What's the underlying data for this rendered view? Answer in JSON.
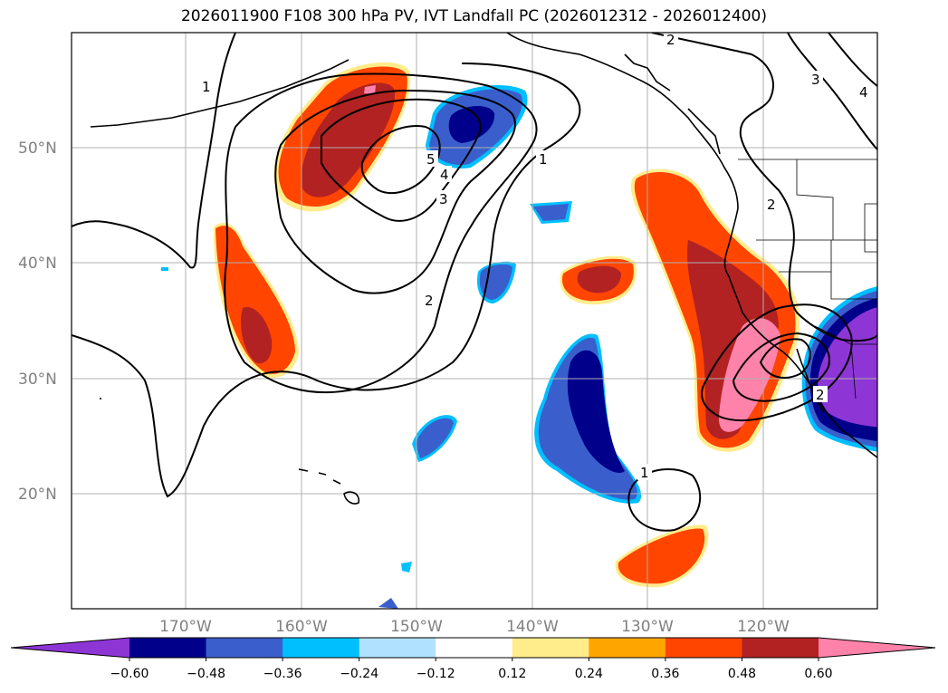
{
  "title": "2026011900 F108 300 hPa PV, IVT Landfall PC (2026012312 - 2026012400)",
  "lat_labels": [
    "50°N",
    "40°N",
    "30°N",
    "20°N"
  ],
  "lon_labels": [
    "170°W",
    "160°W",
    "150°W",
    "140°W",
    "130°W",
    "120°W"
  ],
  "colorbar": {
    "ticks": [
      "−0.60",
      "−0.48",
      "−0.36",
      "−0.24",
      "−0.12",
      "0.12",
      "0.24",
      "0.36",
      "0.48",
      "0.60"
    ],
    "colors": [
      "#8e35d6",
      "#00008b",
      "#3a5fcd",
      "#00bfff",
      "#b0e2ff",
      "#ffffff",
      "#ffec8b",
      "#ffa500",
      "#ff4500",
      "#b22222",
      "#ff82ab"
    ]
  },
  "contour_labels": [
    "1",
    "2",
    "3",
    "4",
    "5",
    "1",
    "2",
    "2",
    "3",
    "4",
    "1",
    "2"
  ]
}
